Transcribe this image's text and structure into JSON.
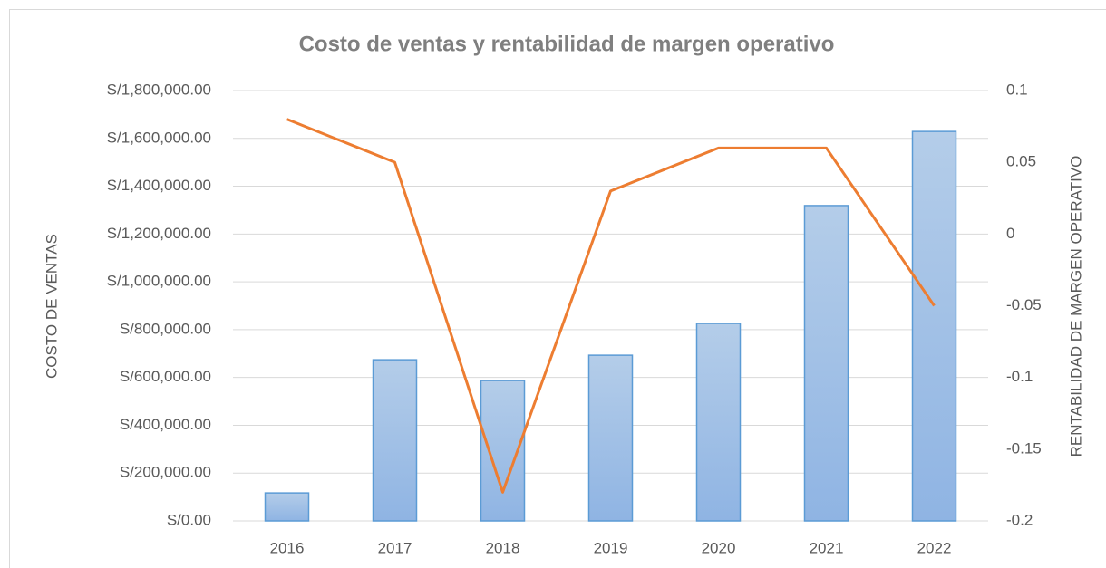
{
  "chart_data": {
    "type": "bar_line",
    "title": "Costo de ventas y rentabilidad de margen operativo",
    "ylabel": "COSTO DE VENTAS",
    "y2label": "RENTABILIDAD DE MARGEN OPERATIVO",
    "categories": [
      "2016",
      "2017",
      "2018",
      "2019",
      "2020",
      "2021",
      "2022"
    ],
    "series": [
      {
        "type": "bar",
        "color": "#5b9bd5",
        "values": [
          117000,
          674000,
          587000,
          693000,
          826000,
          1319000,
          1629000
        ]
      },
      {
        "type": "line",
        "axis": "y2",
        "color": "#ed7d31",
        "values": [
          0.08,
          0.05,
          -0.18,
          0.03,
          0.06,
          0.06,
          -0.05
        ]
      }
    ],
    "ylim": [
      0,
      1800000
    ],
    "yticks": [
      {
        "value": 0,
        "label": "S/0.00"
      },
      {
        "value": 200000,
        "label": "S/200,000.00"
      },
      {
        "value": 400000,
        "label": "S/400,000.00"
      },
      {
        "value": 600000,
        "label": "S/600,000.00"
      },
      {
        "value": 800000,
        "label": "S/800,000.00"
      },
      {
        "value": 1000000,
        "label": "S/1,000,000.00"
      },
      {
        "value": 1200000,
        "label": "S/1,200,000.00"
      },
      {
        "value": 1400000,
        "label": "S/1,400,000.00"
      },
      {
        "value": 1600000,
        "label": "S/1,600,000.00"
      },
      {
        "value": 1800000,
        "label": "S/1,800,000.00"
      }
    ],
    "y2lim": [
      -0.2,
      0.1
    ],
    "y2ticks": [
      -0.2,
      -0.15,
      -0.1,
      -0.05,
      0,
      0.05,
      0.1
    ],
    "grid": true
  }
}
